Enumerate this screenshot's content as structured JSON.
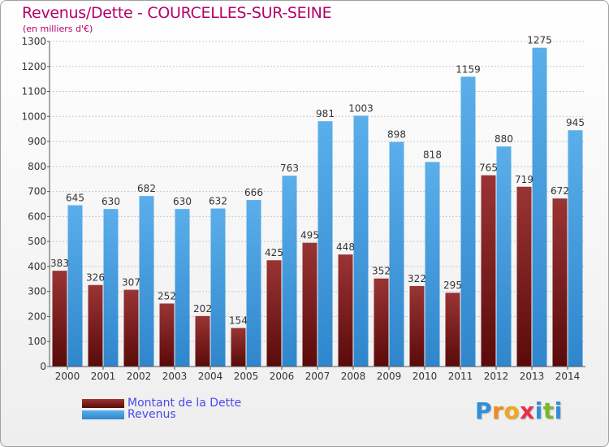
{
  "title": "Revenus/Dette - COURCELLES-SUR-SEINE",
  "subtitle": "(en milliers d'€)",
  "logo": {
    "letters": [
      "P",
      "r",
      "o",
      "x",
      "i",
      "t",
      "i"
    ],
    "colors": [
      "#2f8fd8",
      "#f08a1c",
      "#f0a81c",
      "#e8304a",
      "#2f8fd8",
      "#7ab82a",
      "#2f8fd8"
    ]
  },
  "legend": [
    {
      "label": "Montant de la Dette",
      "color": "#7a1c1c"
    },
    {
      "label": "Revenus",
      "color": "#4aa0e0"
    }
  ],
  "chart_data": {
    "type": "bar",
    "categories": [
      "2000",
      "2001",
      "2002",
      "2003",
      "2004",
      "2005",
      "2006",
      "2007",
      "2008",
      "2009",
      "2010",
      "2011",
      "2012",
      "2013",
      "2014"
    ],
    "series": [
      {
        "name": "Montant de la Dette",
        "color": "#7a1c1c",
        "values": [
          383,
          326,
          307,
          252,
          202,
          154,
          425,
          495,
          448,
          352,
          322,
          295,
          765,
          719,
          672
        ]
      },
      {
        "name": "Revenus",
        "color": "#4aa0e0",
        "values": [
          645,
          630,
          682,
          630,
          632,
          666,
          763,
          981,
          1003,
          898,
          818,
          1159,
          880,
          1275,
          945
        ]
      }
    ],
    "yticks": [
      0,
      100,
      200,
      300,
      400,
      500,
      600,
      700,
      800,
      900,
      1000,
      1100,
      1200,
      1300
    ],
    "ylim": [
      0,
      1300
    ],
    "grid": true,
    "legend_position": "bottom-left"
  }
}
